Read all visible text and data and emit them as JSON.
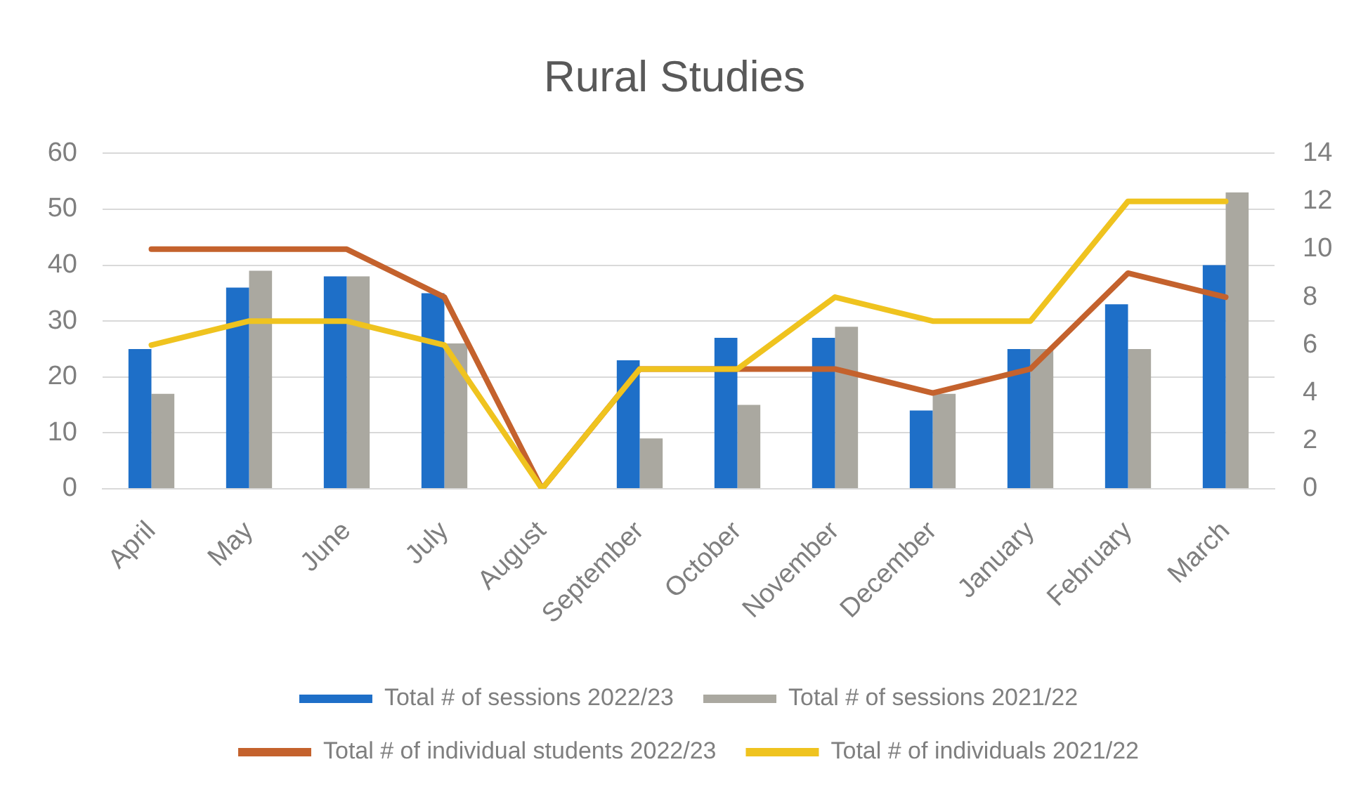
{
  "chart_data": {
    "type": "bar",
    "title": "Rural Studies",
    "categories": [
      "April",
      "May",
      "June",
      "July",
      "August",
      "September",
      "October",
      "November",
      "December",
      "January",
      "February",
      "March"
    ],
    "series": [
      {
        "name": "Total # of sessions 2022/23",
        "color": "#1e6fc8",
        "values": [
          25,
          36,
          38,
          35,
          0,
          23,
          27,
          27,
          14,
          25,
          33,
          40
        ]
      },
      {
        "name": "Total # of sessions 2021/22",
        "color": "#aaa8a0",
        "values": [
          17,
          39,
          38,
          26,
          0,
          9,
          15,
          29,
          17,
          25,
          25,
          53
        ]
      },
      {
        "name": "Total # of individual students 2022/23",
        "type": "line",
        "axis": "y2",
        "color": "#c4622d",
        "values": [
          10,
          10,
          10,
          8,
          0,
          5,
          5,
          5,
          4,
          5,
          9,
          8
        ]
      },
      {
        "name": "Total # of individuals 2021/22",
        "type": "line",
        "axis": "y2",
        "color": "#efc31f",
        "values": [
          6,
          7,
          7,
          6,
          0,
          5,
          5,
          8,
          7,
          7,
          12,
          12
        ]
      }
    ],
    "ylim": [
      0,
      60
    ],
    "yticks": [
      0,
      10,
      20,
      30,
      40,
      50,
      60
    ],
    "y2lim": [
      0,
      14
    ],
    "y2ticks": [
      0,
      2,
      4,
      6,
      8,
      10,
      12,
      14
    ],
    "grid": "y",
    "legend": "bottom",
    "marker": "none",
    "line_style": "solid"
  }
}
